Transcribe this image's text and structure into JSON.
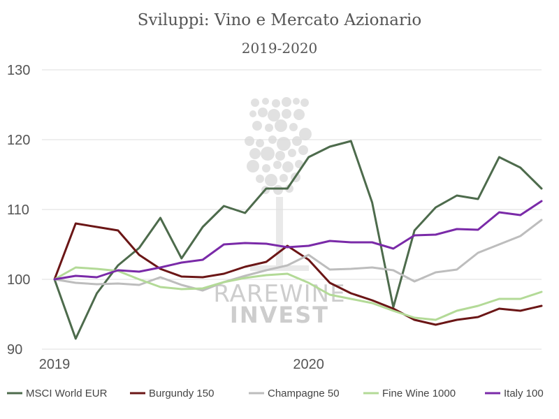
{
  "chart_data": {
    "type": "line",
    "title": "Sviluppi: Vino e Mercato Azionario",
    "subtitle": "2019-2020",
    "x": [
      0,
      1,
      2,
      3,
      4,
      5,
      6,
      7,
      8,
      9,
      10,
      11,
      12,
      13,
      14,
      15,
      16,
      17,
      18,
      19,
      20,
      21,
      22,
      23
    ],
    "x_tick_labels": [
      {
        "index": 0,
        "label": "2019"
      },
      {
        "index": 12,
        "label": "2020"
      }
    ],
    "ylim": [
      90,
      130
    ],
    "y_ticks": [
      90,
      100,
      110,
      120,
      130
    ],
    "grid": true,
    "legend_position": "bottom",
    "series": [
      {
        "name": "MSCI World EUR",
        "color": "#4d6b4c",
        "values": [
          100,
          91.5,
          98,
          102,
          104.5,
          108.8,
          103,
          107.5,
          110.5,
          109.5,
          113,
          113,
          117.5,
          119,
          119.8,
          111,
          96,
          107,
          110.3,
          112,
          111.5,
          117.5,
          116,
          113
        ]
      },
      {
        "name": "Burgundy 150",
        "color": "#6b1616",
        "values": [
          100,
          108,
          107.5,
          107,
          103.5,
          101.5,
          100.4,
          100.3,
          100.8,
          101.8,
          102.5,
          104.8,
          102.8,
          99.5,
          98,
          97,
          95.8,
          94.2,
          93.5,
          94.2,
          94.6,
          95.8,
          95.5,
          96.2
        ]
      },
      {
        "name": "Champagne 50",
        "color": "#bdbdbd",
        "values": [
          100,
          99.5,
          99.3,
          99.4,
          99.2,
          100.3,
          99.2,
          98.4,
          99.6,
          100.5,
          101.3,
          102,
          103.5,
          101.4,
          101.5,
          101.7,
          101.3,
          99.7,
          101,
          101.4,
          103.8,
          105,
          106.2,
          108.5
        ]
      },
      {
        "name": "Fine Wine 1000",
        "color": "#b3da97",
        "values": [
          100,
          101.7,
          101.5,
          101.2,
          100,
          98.9,
          98.6,
          98.7,
          99.6,
          100.2,
          100.6,
          100.8,
          99.5,
          97.8,
          97.2,
          96.6,
          95.5,
          94.5,
          94.2,
          95.5,
          96.2,
          97.2,
          97.2,
          98.2
        ]
      },
      {
        "name": "Italy 100",
        "color": "#7a2aa8",
        "values": [
          100,
          100.5,
          100.3,
          101.3,
          101.1,
          101.7,
          102.4,
          102.8,
          105,
          105.2,
          105.1,
          104.6,
          104.8,
          105.5,
          105.3,
          105.3,
          104.4,
          106.3,
          106.4,
          107.2,
          107.1,
          109.6,
          109.2,
          111.2
        ]
      }
    ]
  },
  "watermark": {
    "line1": "RAREWINE",
    "line2": "INVEST",
    "bold_part": "WINE"
  }
}
